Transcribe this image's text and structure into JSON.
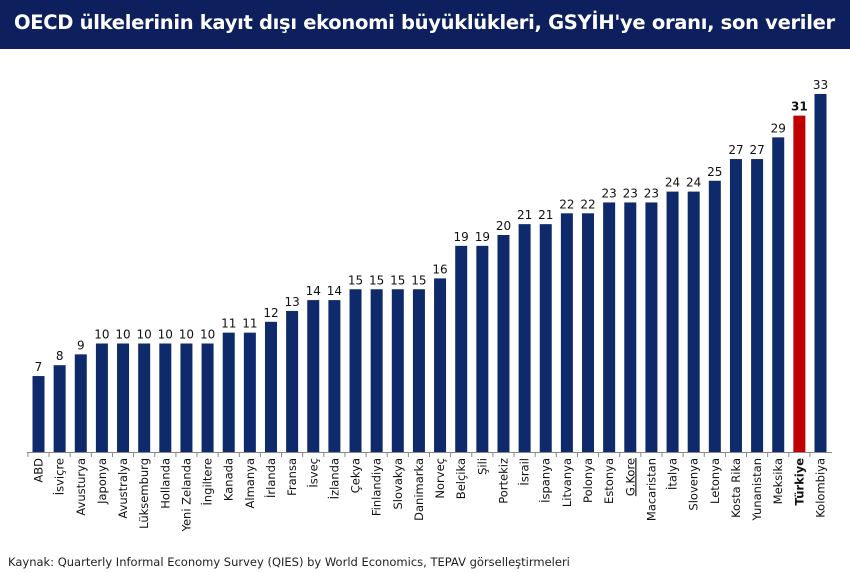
{
  "title": "OECD ülkelerinin kayıt dışı ekonomi büyüklükleri, GSYİH'ye oranı, son veriler",
  "source": "Kaynak: Quarterly Informal Economy Survey (QIES) by World Economics, TEPAV görselleştirmeleri",
  "colors": {
    "header": "#0d1f5c",
    "bar": "#0f2a6b",
    "highlight": "#c00000"
  },
  "chart_data": {
    "type": "bar",
    "title": "OECD ülkelerinin kayıt dışı ekonomi büyüklükleri, GSYİH'ye oranı, son veriler",
    "xlabel": "",
    "ylabel": "",
    "ylim": [
      0,
      33
    ],
    "grid": false,
    "highlight": "Türkiye",
    "categories": [
      "ABD",
      "İsviçre",
      "Avusturya",
      "Japonya",
      "Avustralya",
      "Lüksemburg",
      "Hollanda",
      "Yeni Zelanda",
      "İngiltere",
      "Kanada",
      "Almanya",
      "İrlanda",
      "Fransa",
      "İsveç",
      "İzlanda",
      "Çekya",
      "Finlandiya",
      "Slovakya",
      "Danimarka",
      "Norveç",
      "Belçika",
      "Şili",
      "Portekiz",
      "İsrail",
      "İspanya",
      "Litvanya",
      "Polonya",
      "Estonya",
      "G.Kore",
      "Macaristan",
      "İtalya",
      "Slovenya",
      "Letonya",
      "Kosta Rika",
      "Yunanistan",
      "Meksika",
      "Türkiye",
      "Kolombiya"
    ],
    "values": [
      7,
      8,
      9,
      10,
      10,
      10,
      10,
      10,
      10,
      11,
      11,
      12,
      13,
      14,
      14,
      15,
      15,
      15,
      15,
      16,
      19,
      19,
      20,
      21,
      21,
      22,
      22,
      23,
      23,
      23,
      24,
      24,
      25,
      27,
      27,
      29,
      31,
      33
    ]
  }
}
